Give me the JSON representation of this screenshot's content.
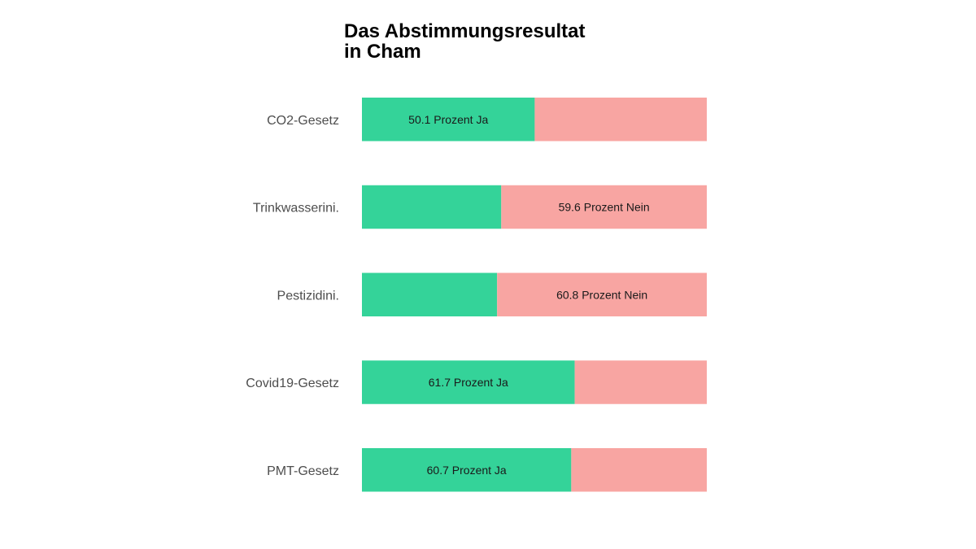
{
  "chart_data": {
    "type": "bar",
    "orientation": "horizontal",
    "stacked": true,
    "title_lines": [
      "Das Abstimmungsresultat",
      "in Cham"
    ],
    "categories": [
      "CO2-Gesetz",
      "Trinkwasserini.",
      "Pestizidini.",
      "Covid19-Gesetz",
      "PMT-Gesetz"
    ],
    "series": [
      {
        "values": [
          50.1,
          40.4,
          39.2,
          61.7,
          60.7
        ],
        "color": "#34d399"
      },
      {
        "values": [
          49.9,
          59.6,
          60.8,
          38.3,
          39.3
        ],
        "color": "#f8a5a2"
      }
    ],
    "bar_labels": [
      "50.1 Prozent Ja",
      "59.6 Prozent Nein",
      "60.8 Prozent Nein",
      "61.7 Prozent Ja",
      "60.7 Prozent Ja"
    ],
    "label_on": [
      "ja",
      "nein",
      "nein",
      "ja",
      "ja"
    ],
    "xlim": [
      0,
      100
    ],
    "grid": false,
    "legend": "none"
  }
}
